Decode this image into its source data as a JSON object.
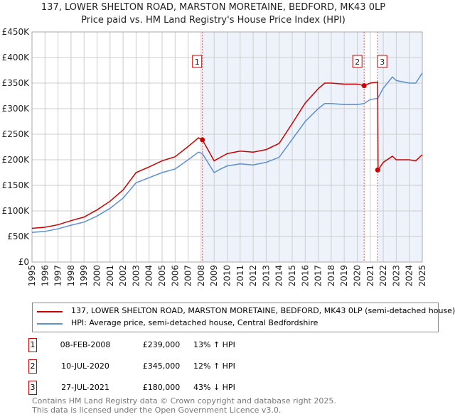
{
  "chart_data": {
    "type": "line",
    "title": "137, LOWER SHELTON ROAD, MARSTON MORETAINE, BEDFORD, MK43 0LP",
    "subtitle": "Price paid vs. HM Land Registry's House Price Index (HPI)",
    "xlim": [
      1995,
      2025
    ],
    "ylim": [
      0,
      450000
    ],
    "yticks": [
      {
        "v": 0,
        "label": "£0"
      },
      {
        "v": 50000,
        "label": "£50K"
      },
      {
        "v": 100000,
        "label": "£100K"
      },
      {
        "v": 150000,
        "label": "£150K"
      },
      {
        "v": 200000,
        "label": "£200K"
      },
      {
        "v": 250000,
        "label": "£250K"
      },
      {
        "v": 300000,
        "label": "£300K"
      },
      {
        "v": 350000,
        "label": "£350K"
      },
      {
        "v": 400000,
        "label": "£400K"
      },
      {
        "v": 450000,
        "label": "£450K"
      }
    ],
    "xticks": [
      "1995",
      "1996",
      "1997",
      "1998",
      "1999",
      "2000",
      "2001",
      "2002",
      "2003",
      "2004",
      "2005",
      "2006",
      "2007",
      "2008",
      "2009",
      "2010",
      "2011",
      "2012",
      "2013",
      "2014",
      "2015",
      "2016",
      "2017",
      "2018",
      "2019",
      "2020",
      "2021",
      "2022",
      "2023",
      "2024",
      "2025"
    ],
    "series": [
      {
        "name": "137, LOWER SHELTON ROAD, MARSTON MORETAINE, BEDFORD, MK43 0LP (semi-detached house)",
        "color": "#cc0000",
        "x": [
          1995,
          1996,
          1997,
          1998,
          1999,
          2000,
          2001,
          2002,
          2003,
          2004,
          2005,
          2006,
          2007,
          2007.8,
          2008.1,
          2009,
          2009.5,
          2010,
          2011,
          2012,
          2013,
          2014,
          2015,
          2016,
          2017,
          2017.5,
          2018,
          2019,
          2020,
          2020.53,
          2021,
          2021.57,
          2021.6,
          2022,
          2022.7,
          2023,
          2024,
          2024.5,
          2025
        ],
        "y": [
          66000,
          68000,
          73000,
          81000,
          88000,
          102000,
          119000,
          141000,
          175000,
          186000,
          198000,
          206000,
          226000,
          243000,
          239000,
          198000,
          205000,
          212000,
          217000,
          215000,
          220000,
          232000,
          271000,
          311000,
          339000,
          350000,
          350000,
          348000,
          348000,
          345000,
          350000,
          352000,
          180000,
          195000,
          207000,
          200000,
          200000,
          198000,
          210000
        ]
      },
      {
        "name": "HPI: Average price, semi-detached house, Central Bedfordshire",
        "color": "#5b8fd6",
        "x": [
          1995,
          1996,
          1997,
          1998,
          1999,
          2000,
          2001,
          2002,
          2003,
          2004,
          2005,
          2006,
          2007,
          2007.8,
          2008.1,
          2009,
          2009.5,
          2010,
          2011,
          2012,
          2013,
          2014,
          2015,
          2016,
          2017,
          2017.5,
          2018,
          2019,
          2020,
          2020.53,
          2021,
          2021.57,
          2022,
          2022.7,
          2023,
          2024,
          2024.5,
          2025
        ],
        "y": [
          58000,
          60000,
          65000,
          72000,
          78000,
          90000,
          105000,
          125000,
          155000,
          165000,
          175000,
          182000,
          200000,
          215000,
          212000,
          175000,
          182000,
          188000,
          192000,
          190000,
          195000,
          205000,
          240000,
          275000,
          300000,
          310000,
          310000,
          308000,
          308000,
          310000,
          318000,
          320000,
          340000,
          362000,
          355000,
          350000,
          350000,
          370000
        ]
      }
    ],
    "sales": [
      {
        "n": "1",
        "x": 2008.1,
        "y": 239000
      },
      {
        "n": "2",
        "x": 2020.53,
        "y": 345000
      },
      {
        "n": "3",
        "x": 2021.57,
        "y": 180000
      }
    ]
  },
  "legend": {
    "red": "137, LOWER SHELTON ROAD, MARSTON MORETAINE, BEDFORD, MK43 0LP (semi-detached house)",
    "blue": "HPI: Average price, semi-detached house, Central Bedfordshire"
  },
  "table": [
    {
      "n": "1",
      "date": "08-FEB-2008",
      "price": "£239,000",
      "hpi": "13% ↑ HPI"
    },
    {
      "n": "2",
      "date": "10-JUL-2020",
      "price": "£345,000",
      "hpi": "12% ↑ HPI"
    },
    {
      "n": "3",
      "date": "27-JUL-2021",
      "price": "£180,000",
      "hpi": "43% ↓ HPI"
    }
  ],
  "footer": {
    "line1": "Contains HM Land Registry data © Crown copyright and database right 2025.",
    "line2": "This data is licensed under the Open Government Licence v3.0."
  }
}
